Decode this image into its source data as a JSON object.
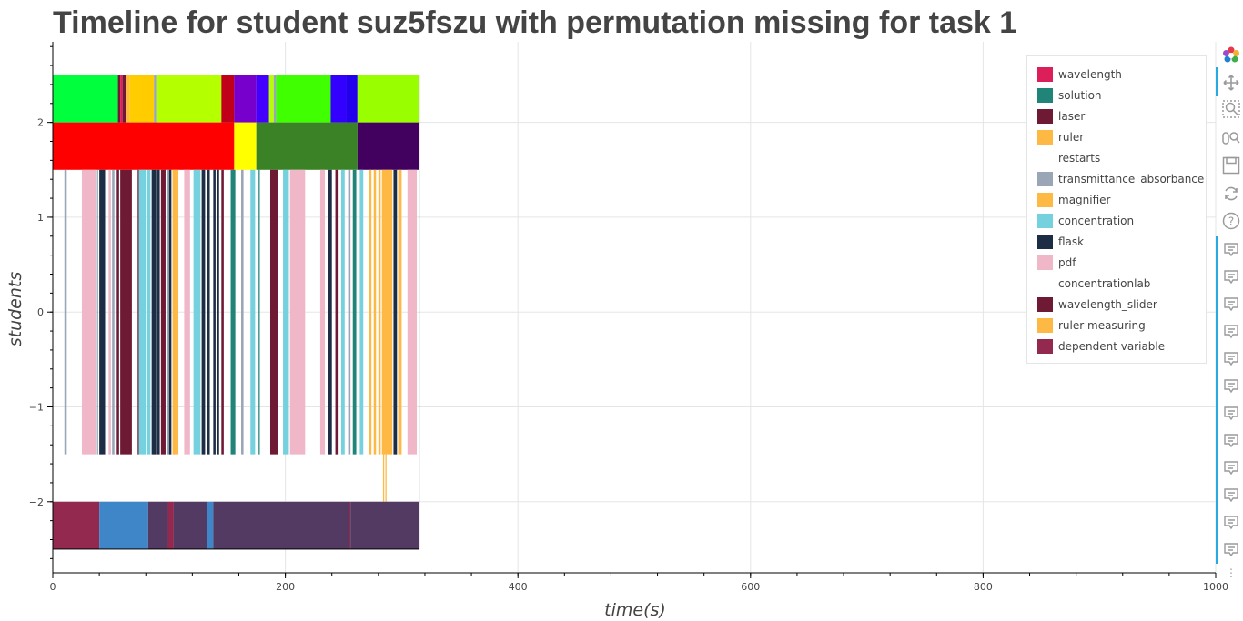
{
  "title": "Timeline for student suz5fszu with permutation missing for task 1",
  "chart_data": {
    "type": "timeline",
    "title": "Timeline for student suz5fszu with permutation missing for task 1",
    "xlabel": "time(s)",
    "ylabel": "students",
    "xlim": [
      0,
      1000
    ],
    "ylim": [
      -2.75,
      2.85
    ],
    "x_ticks": [
      0,
      200,
      400,
      600,
      800,
      1000
    ],
    "x_tick_labels": [
      "0",
      "200",
      "400",
      "600",
      "800",
      "1000"
    ],
    "y_ticks": [
      -2,
      -1,
      0,
      1,
      2
    ],
    "y_tick_labels": [
      "−2",
      "−1",
      "0",
      "1",
      "2"
    ],
    "grid": true,
    "legend_position": "top-right",
    "legend": [
      {
        "label": "wavelength",
        "color": "#dc1e5a"
      },
      {
        "label": "solution",
        "color": "#218478"
      },
      {
        "label": "laser",
        "color": "#6f1a34"
      },
      {
        "label": "ruler",
        "color": "#fdb944"
      },
      {
        "label": "restarts",
        "color": "#ffffff"
      },
      {
        "label": "transmittance_absorbance",
        "color": "#9aa6b5"
      },
      {
        "label": "magnifier",
        "color": "#fdb944"
      },
      {
        "label": "concentration",
        "color": "#74d1dd"
      },
      {
        "label": "flask",
        "color": "#1d2d46"
      },
      {
        "label": "pdf",
        "color": "#f0b7c9"
      },
      {
        "label": "concentrationlab",
        "color": "#ffffff"
      },
      {
        "label": "wavelength_slider",
        "color": "#6f1a34"
      },
      {
        "label": "ruler measuring",
        "color": "#fdb944"
      },
      {
        "label": "dependent variable",
        "color": "#93294f"
      }
    ],
    "rows": [
      {
        "name": "top-segments",
        "y0": 2.0,
        "y1": 2.5,
        "segments": [
          {
            "start": 0,
            "end": 56,
            "color": "#00ff3c"
          },
          {
            "start": 56,
            "end": 58,
            "color": "#6f1a34"
          },
          {
            "start": 58,
            "end": 60,
            "color": "#dc1e5a"
          },
          {
            "start": 60,
            "end": 63,
            "color": "#6f1a34"
          },
          {
            "start": 63,
            "end": 66,
            "color": "#fdb944"
          },
          {
            "start": 66,
            "end": 87,
            "color": "#ffcc00"
          },
          {
            "start": 87,
            "end": 89,
            "color": "#9aa6b5"
          },
          {
            "start": 89,
            "end": 145,
            "color": "#b4ff00"
          },
          {
            "start": 145,
            "end": 156,
            "color": "#c0001a"
          },
          {
            "start": 156,
            "end": 175,
            "color": "#7700cc"
          },
          {
            "start": 175,
            "end": 186,
            "color": "#4400ff"
          },
          {
            "start": 186,
            "end": 190,
            "color": "#b4ff00"
          },
          {
            "start": 190,
            "end": 192,
            "color": "#9aa6b5"
          },
          {
            "start": 192,
            "end": 239,
            "color": "#40ff00"
          },
          {
            "start": 239,
            "end": 252,
            "color": "#3300ff"
          },
          {
            "start": 252,
            "end": 262,
            "color": "#2200ee"
          },
          {
            "start": 262,
            "end": 315,
            "color": "#99ff00"
          }
        ]
      },
      {
        "name": "task-segments",
        "y0": 1.5,
        "y1": 2.0,
        "segments": [
          {
            "start": 0,
            "end": 156,
            "color": "#ff0000"
          },
          {
            "start": 156,
            "end": 175,
            "color": "#ffff00"
          },
          {
            "start": 175,
            "end": 262,
            "color": "#3a8225"
          },
          {
            "start": 262,
            "end": 315,
            "color": "#42005f"
          }
        ]
      },
      {
        "name": "action-bars",
        "y0": -1.5,
        "y1": 1.5,
        "segments": [
          {
            "start": 10,
            "end": 12,
            "color": "#9aa6b5"
          },
          {
            "start": 25,
            "end": 37,
            "color": "#f0b7c9"
          },
          {
            "start": 38,
            "end": 39,
            "color": "#9aa6b5"
          },
          {
            "start": 40,
            "end": 45,
            "color": "#1d2d46"
          },
          {
            "start": 48,
            "end": 50,
            "color": "#f0b7c9"
          },
          {
            "start": 51,
            "end": 53,
            "color": "#9aa6b5"
          },
          {
            "start": 55,
            "end": 57,
            "color": "#6f1a34"
          },
          {
            "start": 58,
            "end": 68,
            "color": "#6f1a34"
          },
          {
            "start": 73,
            "end": 74,
            "color": "#6f1a34"
          },
          {
            "start": 74,
            "end": 80,
            "color": "#74d1dd"
          },
          {
            "start": 81,
            "end": 84,
            "color": "#74d1dd"
          },
          {
            "start": 85,
            "end": 89,
            "color": "#1d2d46"
          },
          {
            "start": 90,
            "end": 92,
            "color": "#1d2d46"
          },
          {
            "start": 93,
            "end": 97,
            "color": "#6f1a34"
          },
          {
            "start": 98,
            "end": 100,
            "color": "#9aa6b5"
          },
          {
            "start": 100,
            "end": 102,
            "color": "#1d2d46"
          },
          {
            "start": 103,
            "end": 106,
            "color": "#fdb944"
          },
          {
            "start": 106,
            "end": 108,
            "color": "#fdb944"
          },
          {
            "start": 113,
            "end": 118,
            "color": "#f0b7c9"
          },
          {
            "start": 121,
            "end": 127,
            "color": "#74d1dd"
          },
          {
            "start": 128,
            "end": 131,
            "color": "#1d2d46"
          },
          {
            "start": 133,
            "end": 135,
            "color": "#1d2d46"
          },
          {
            "start": 138,
            "end": 140,
            "color": "#1d2d46"
          },
          {
            "start": 141,
            "end": 143,
            "color": "#1d2d46"
          },
          {
            "start": 145,
            "end": 147,
            "color": "#6f1a34"
          },
          {
            "start": 153,
            "end": 157,
            "color": "#218478"
          },
          {
            "start": 162,
            "end": 164,
            "color": "#9aa6b5"
          },
          {
            "start": 170,
            "end": 174,
            "color": "#74d1dd"
          },
          {
            "start": 177,
            "end": 178,
            "color": "#218478"
          },
          {
            "start": 187,
            "end": 194,
            "color": "#6f1a34"
          },
          {
            "start": 198,
            "end": 203,
            "color": "#74d1dd"
          },
          {
            "start": 204,
            "end": 217,
            "color": "#f0b7c9"
          },
          {
            "start": 230,
            "end": 234,
            "color": "#f0b7c9"
          },
          {
            "start": 237,
            "end": 240,
            "color": "#1d2d46"
          },
          {
            "start": 243,
            "end": 245,
            "color": "#6f1a34"
          },
          {
            "start": 248,
            "end": 251,
            "color": "#74d1dd"
          },
          {
            "start": 254,
            "end": 256,
            "color": "#9aa6b5"
          },
          {
            "start": 258,
            "end": 261,
            "color": "#218478"
          },
          {
            "start": 264,
            "end": 267,
            "color": "#74d1dd"
          },
          {
            "start": 272,
            "end": 274,
            "color": "#fdb944"
          },
          {
            "start": 276,
            "end": 278,
            "color": "#fdb944"
          },
          {
            "start": 280,
            "end": 282,
            "color": "#fdb944"
          },
          {
            "start": 283,
            "end": 292,
            "color": "#fdb944"
          },
          {
            "start": 293,
            "end": 296,
            "color": "#1d2d46"
          },
          {
            "start": 297,
            "end": 300,
            "color": "#fdb944"
          },
          {
            "start": 305,
            "end": 313,
            "color": "#f0b7c9"
          }
        ]
      },
      {
        "name": "ruler-measuring-ticks",
        "y0": -2.0,
        "y1": -1.5,
        "segments": [
          {
            "start": 284,
            "end": 285,
            "color": "#fdb944"
          },
          {
            "start": 286,
            "end": 287,
            "color": "#fdb944"
          }
        ]
      },
      {
        "name": "bottom-segments",
        "y0": -2.5,
        "y1": -2.0,
        "segments": [
          {
            "start": 0,
            "end": 40,
            "color": "#93294f"
          },
          {
            "start": 40,
            "end": 82,
            "color": "#3f86c8"
          },
          {
            "start": 82,
            "end": 99,
            "color": "#523a62"
          },
          {
            "start": 99,
            "end": 104,
            "color": "#93294f"
          },
          {
            "start": 104,
            "end": 133,
            "color": "#523a62"
          },
          {
            "start": 133,
            "end": 138,
            "color": "#3f86c8"
          },
          {
            "start": 138,
            "end": 255,
            "color": "#523a62"
          },
          {
            "start": 255,
            "end": 256,
            "color": "#93294f"
          },
          {
            "start": 256,
            "end": 315,
            "color": "#523a62"
          }
        ]
      }
    ]
  },
  "toolbar": {
    "logo": "bokeh-logo-icon",
    "tools": [
      "pan-icon",
      "box-zoom-icon",
      "wheel-zoom-icon",
      "save-icon",
      "reset-icon",
      "help-icon"
    ],
    "hover_tool_count": 12,
    "more_glyph": "⋮"
  }
}
